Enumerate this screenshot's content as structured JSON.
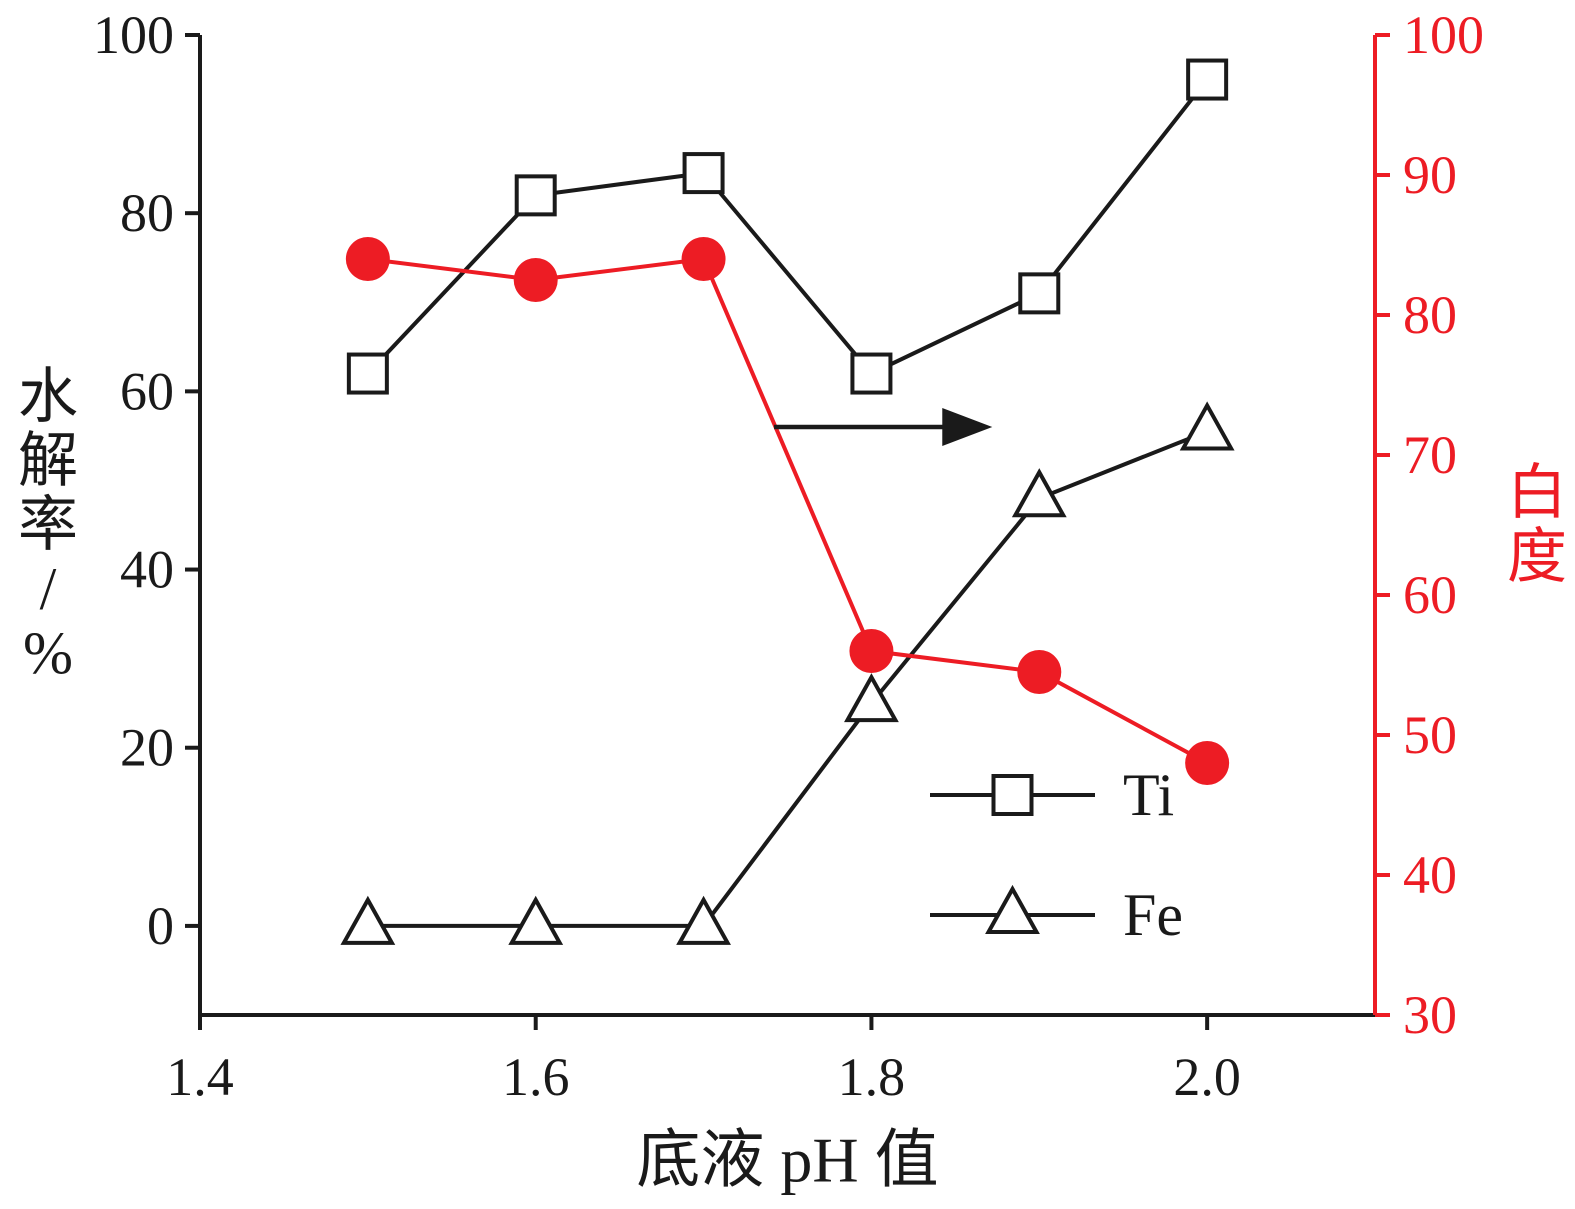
{
  "chart_data": {
    "type": "line",
    "title": "",
    "xlabel": "底液 pH 值",
    "x": [
      1.5,
      1.6,
      1.7,
      1.8,
      1.9,
      2.0
    ],
    "xlim": [
      1.4,
      2.1
    ],
    "x_ticks": [
      1.4,
      1.6,
      1.8,
      2.0
    ],
    "x_tick_labels": [
      "1.4",
      "1.6",
      "1.8",
      "2.0"
    ],
    "left_axis": {
      "label": "水解率/%",
      "ticks": [
        0,
        20,
        40,
        60,
        80,
        100
      ],
      "lim": [
        -10,
        100
      ],
      "color": "#1a1a1a"
    },
    "right_axis": {
      "label": "白度",
      "ticks": [
        30,
        40,
        50,
        60,
        70,
        80,
        90,
        100
      ],
      "lim": [
        30,
        100
      ],
      "color": "#ed1c24"
    },
    "series": [
      {
        "name": "Ti",
        "axis": "left",
        "marker": "open-square",
        "color": "#1a1a1a",
        "values": [
          62,
          82,
          84.5,
          62,
          71,
          95
        ]
      },
      {
        "name": "Fe",
        "axis": "left",
        "marker": "open-triangle",
        "color": "#1a1a1a",
        "values": [
          0,
          0,
          0,
          25,
          48,
          55.5
        ]
      },
      {
        "name": "白度",
        "axis": "right",
        "marker": "filled-circle",
        "color": "#ed1c24",
        "values": [
          84,
          82.5,
          84,
          56,
          54.5,
          48
        ]
      }
    ],
    "legend": {
      "position": "inside-lower-right",
      "entries": [
        "Ti",
        "Fe"
      ]
    },
    "annotations": [
      {
        "type": "arrow-right",
        "meaning": "whiteness-series-refers-to-right-axis",
        "x_from": 1.742,
        "x_to": 1.872,
        "y_left_axis": 56,
        "color": "#1a1a1a"
      }
    ],
    "grid": false,
    "colors": {
      "black": "#1a1a1a",
      "red": "#ed1c24",
      "white": "#ffffff",
      "background": "#ffffff"
    }
  }
}
